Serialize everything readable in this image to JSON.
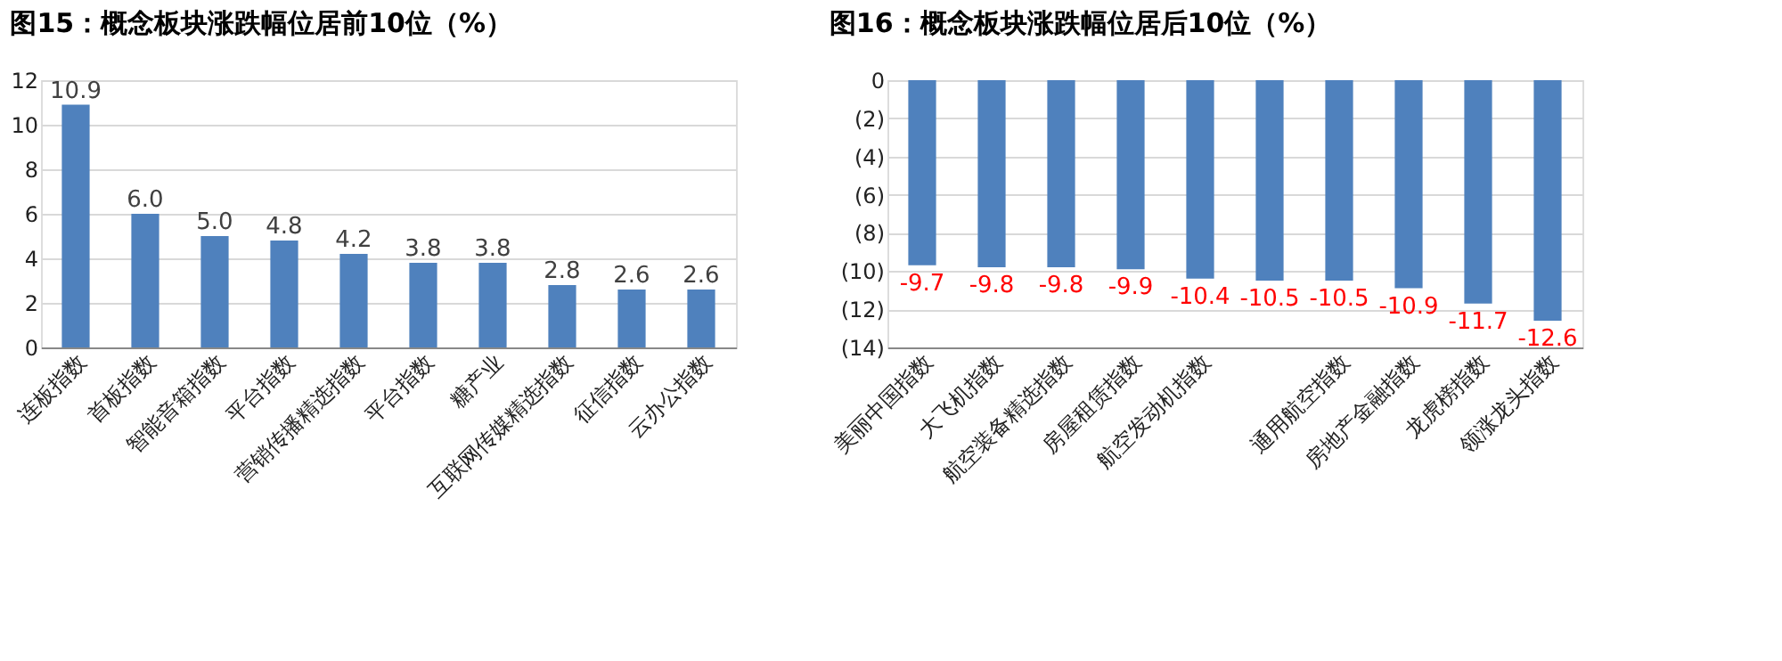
{
  "chart_data": [
    {
      "type": "bar",
      "title": "图15：概念板块涨跌幅位居前10位（%）",
      "categories": [
        "连板指数",
        "首板指数",
        "智能音箱指数",
        "平台指数",
        "营销传播精选指数",
        "平台指数",
        "糖产业",
        "互联网传媒精选指数",
        "征信指数",
        "云办公指数"
      ],
      "values": [
        10.9,
        6.0,
        5.0,
        4.8,
        4.2,
        3.8,
        3.8,
        2.8,
        2.6,
        2.6
      ],
      "value_labels": [
        "10.9",
        "6.0",
        "5.0",
        "4.8",
        "4.2",
        "3.8",
        "3.8",
        "2.8",
        "2.6",
        "2.6"
      ],
      "color": "#4f81bd",
      "ylim": [
        0,
        12
      ],
      "yticks": [
        0,
        2,
        4,
        6,
        8,
        10,
        12
      ],
      "grid": "y",
      "data_labels": true
    },
    {
      "type": "bar",
      "title": "图16：概念板块涨跌幅位居后10位（%）",
      "categories": [
        "美丽中国指数",
        "大飞机指数",
        "航空装备精选指数",
        "房屋租赁指数",
        "航空发动机指数",
        null,
        "通用航空指数",
        "房地产金融指数",
        "龙虎榜指数",
        "领涨龙头指数"
      ],
      "values": [
        -9.7,
        -9.8,
        -9.8,
        -9.9,
        -10.4,
        -10.5,
        -10.5,
        -10.9,
        -11.7,
        -12.6
      ],
      "color": "#4f81bd",
      "ylim": [
        -14,
        0
      ],
      "yticks": [
        0,
        {
          "value": -2,
          "label": "(2)"
        },
        {
          "value": -4,
          "label": "(4)"
        },
        {
          "value": -6,
          "label": "(6)"
        },
        {
          "value": -8,
          "label": "(8)"
        },
        {
          "value": -10,
          "label": "(10)"
        },
        {
          "value": -12,
          "label": "(12)"
        },
        {
          "value": -14,
          "label": "(14)"
        }
      ],
      "grid": "y",
      "data_labels": true
    }
  ]
}
